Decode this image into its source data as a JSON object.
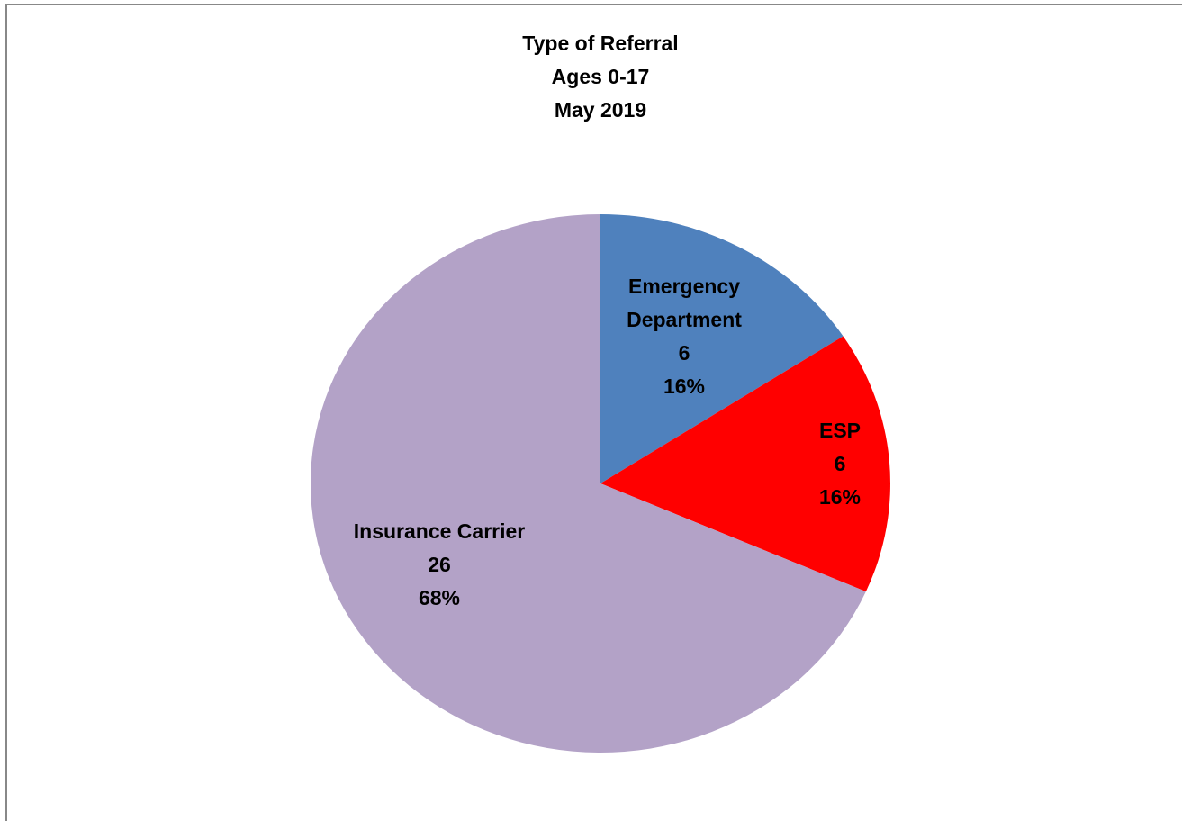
{
  "chart_data": {
    "type": "pie",
    "title": [
      "Type of Referral",
      "Ages 0-17",
      "May 2019"
    ],
    "categories": [
      "Emergency\nDepartment",
      "ESP",
      "Insurance Carrier"
    ],
    "values": [
      6,
      6,
      26
    ],
    "percent_labels": [
      "16%",
      "16%",
      "68%"
    ],
    "colors": [
      "#4f81bd",
      "#ff0000",
      "#b3a2c7"
    ]
  }
}
